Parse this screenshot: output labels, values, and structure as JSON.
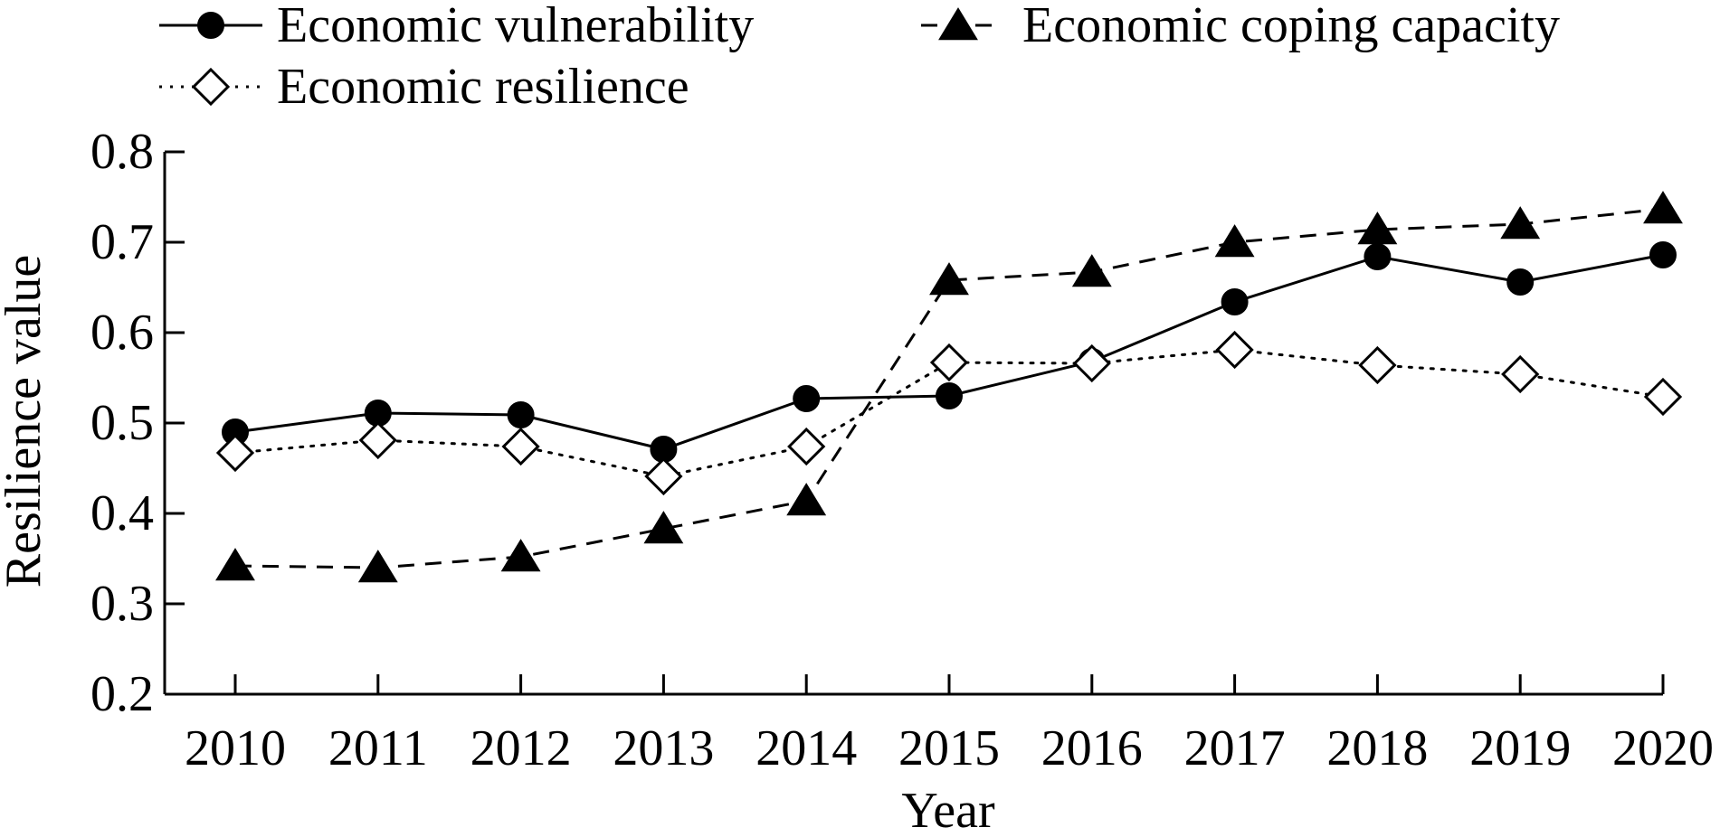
{
  "chart_data": {
    "type": "line",
    "xlabel": "Year",
    "ylabel": "Resilience value",
    "ylim": [
      0.2,
      0.8
    ],
    "yticks": [
      "0.2",
      "0.3",
      "0.4",
      "0.5",
      "0.6",
      "0.7",
      "0.8"
    ],
    "categories": [
      "2010",
      "2011",
      "2012",
      "2013",
      "2014",
      "2015",
      "2016",
      "2017",
      "2018",
      "2019",
      "2020"
    ],
    "grid": false,
    "legend_position": "top",
    "series": [
      {
        "name": "Economic vulnerability",
        "marker": "circle-filled",
        "line_style": "solid",
        "color": "#000000",
        "values": [
          0.49,
          0.511,
          0.509,
          0.471,
          0.527,
          0.53,
          0.568,
          0.634,
          0.684,
          0.656,
          0.686
        ]
      },
      {
        "name": "Economic coping capacity",
        "marker": "triangle-filled",
        "line_style": "dashed",
        "color": "#000000",
        "values": [
          0.342,
          0.34,
          0.352,
          0.383,
          0.414,
          0.658,
          0.667,
          0.7,
          0.714,
          0.72,
          0.737
        ]
      },
      {
        "name": "Economic resilience",
        "marker": "diamond-open",
        "line_style": "dotted",
        "color": "#000000",
        "values": [
          0.467,
          0.481,
          0.474,
          0.441,
          0.474,
          0.567,
          0.566,
          0.581,
          0.564,
          0.554,
          0.529
        ]
      }
    ]
  }
}
